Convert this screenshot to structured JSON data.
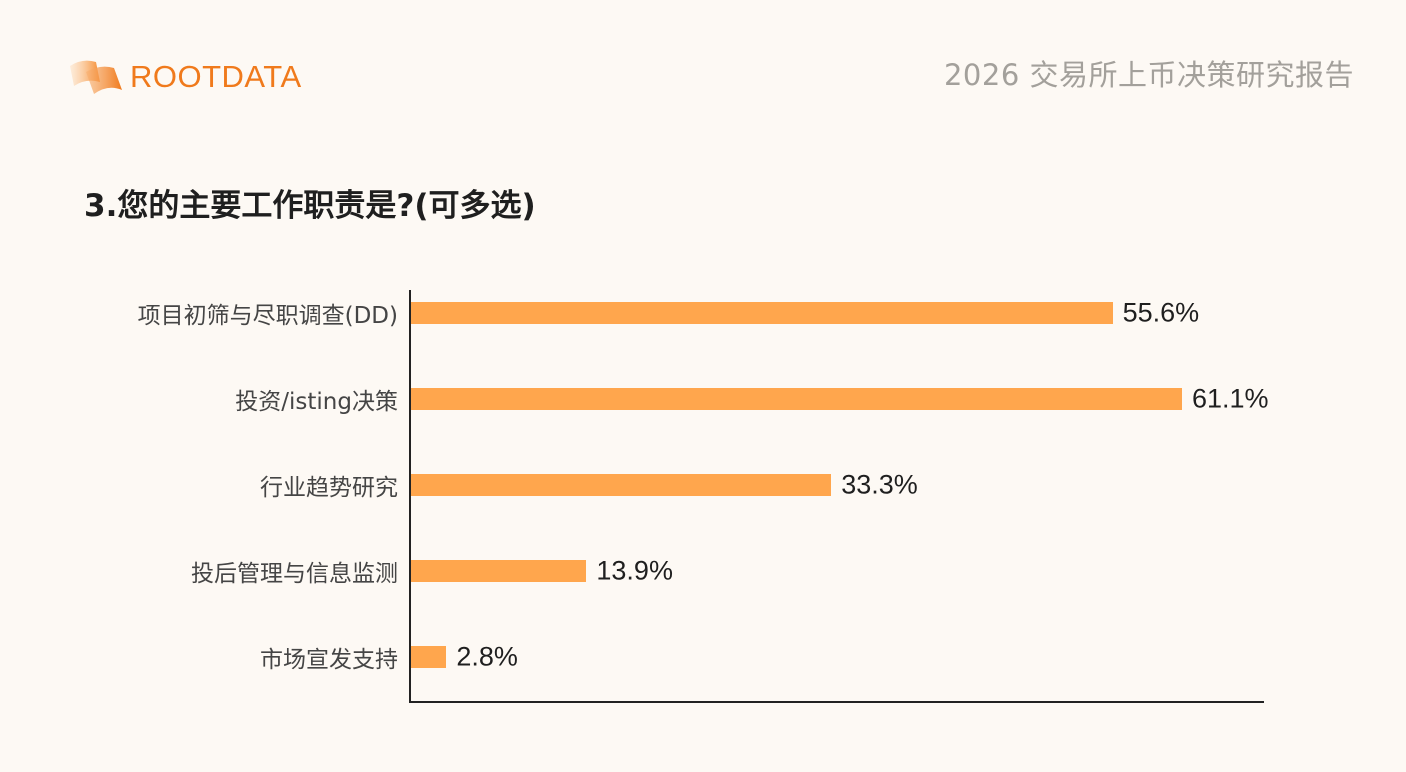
{
  "header": {
    "brand": "ROOTDATA",
    "brand_color": "#f07a1c",
    "report_title": "2026 交易所上币决策研究报告"
  },
  "question": "3.您的主要工作职责是?(可多选)",
  "bar_color": "#ffa64d",
  "chart_data": {
    "type": "bar",
    "orientation": "horizontal",
    "title": "3.您的主要工作职责是?(可多选)",
    "xlabel": "",
    "ylabel": "",
    "grid": false,
    "legend": null,
    "categories": [
      "项目初筛与尽职调查(DD)",
      "投资/isting决策",
      "行业趋势研究",
      "投后管理与信息监测",
      "市场宣发支持"
    ],
    "values": [
      55.6,
      61.1,
      33.3,
      13.9,
      2.8
    ],
    "value_labels": [
      "55.6%",
      "61.1%",
      "33.3%",
      "13.9%",
      "2.8%"
    ],
    "unit": "%",
    "xlim": [
      0,
      67.6
    ]
  }
}
